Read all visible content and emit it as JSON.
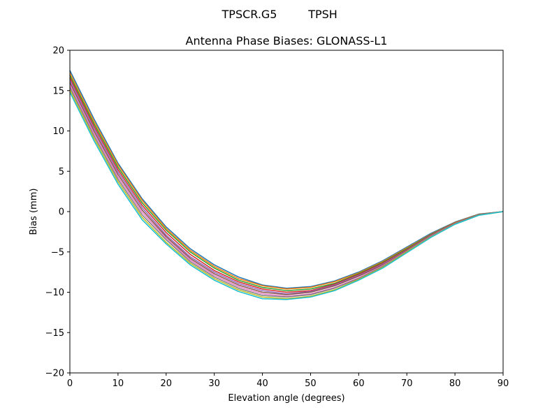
{
  "suptitle": {
    "left": "TPSCR.G5",
    "right": "TPSH"
  },
  "chart_data": {
    "type": "line",
    "title": "Antenna Phase Biases: GLONASS-L1",
    "xlabel": "Elevation angle (degrees)",
    "ylabel": "Bias (mm)",
    "xlim": [
      0,
      90
    ],
    "ylim": [
      -20,
      20
    ],
    "xticks": [
      "0",
      "10",
      "20",
      "30",
      "40",
      "50",
      "60",
      "70",
      "80",
      "90"
    ],
    "yticks": [
      "20",
      "15",
      "10",
      "5",
      "0",
      "−5",
      "−10",
      "−15",
      "−20"
    ],
    "grid": false,
    "legend": "none",
    "x": [
      0,
      5,
      10,
      15,
      20,
      25,
      30,
      35,
      40,
      45,
      50,
      55,
      60,
      65,
      70,
      75,
      80,
      85,
      90
    ],
    "series_colors": [
      "#1f77b4",
      "#ff7f0e",
      "#2ca02c",
      "#d62728",
      "#9467bd",
      "#8c564b",
      "#e377c2",
      "#7f7f7f",
      "#bcbd22",
      "#17becf"
    ],
    "series": [
      {
        "values": [
          17.5,
          11.5,
          6.0,
          1.6,
          -1.9,
          -4.6,
          -6.6,
          -8.1,
          -9.1,
          -9.5,
          -9.3,
          -8.6,
          -7.5,
          -6.1,
          -4.4,
          -2.7,
          -1.3,
          -0.3,
          0.0
        ]
      },
      {
        "values": [
          17.2,
          11.2,
          5.8,
          1.4,
          -2.1,
          -4.8,
          -6.8,
          -8.3,
          -9.2,
          -9.6,
          -9.4,
          -8.7,
          -7.6,
          -6.2,
          -4.5,
          -2.8,
          -1.35,
          -0.32,
          0.0
        ]
      },
      {
        "values": [
          16.9,
          10.9,
          5.5,
          1.1,
          -2.3,
          -5.0,
          -7.0,
          -8.5,
          -9.4,
          -9.8,
          -9.6,
          -8.9,
          -7.7,
          -6.3,
          -4.6,
          -2.85,
          -1.4,
          -0.34,
          0.0
        ]
      },
      {
        "values": [
          16.6,
          10.6,
          5.2,
          0.8,
          -2.6,
          -5.3,
          -7.3,
          -8.7,
          -9.6,
          -10.0,
          -9.8,
          -9.0,
          -7.8,
          -6.4,
          -4.7,
          -2.9,
          -1.42,
          -0.36,
          0.0
        ]
      },
      {
        "values": [
          16.3,
          10.3,
          4.9,
          0.5,
          -2.9,
          -5.6,
          -7.5,
          -8.9,
          -9.8,
          -10.2,
          -9.9,
          -9.1,
          -7.9,
          -6.5,
          -4.75,
          -2.95,
          -1.45,
          -0.38,
          0.0
        ]
      },
      {
        "values": [
          16.0,
          10.0,
          4.6,
          0.2,
          -3.1,
          -5.8,
          -7.7,
          -9.1,
          -10.0,
          -10.3,
          -10.0,
          -9.2,
          -8.0,
          -6.6,
          -4.8,
          -3.0,
          -1.48,
          -0.4,
          0.0
        ]
      },
      {
        "values": [
          15.7,
          9.7,
          4.3,
          -0.1,
          -3.3,
          -6.0,
          -7.9,
          -9.3,
          -10.2,
          -10.5,
          -10.2,
          -9.4,
          -8.2,
          -6.7,
          -4.9,
          -3.05,
          -1.5,
          -0.42,
          0.0
        ]
      },
      {
        "values": [
          15.4,
          9.4,
          4.0,
          -0.4,
          -3.5,
          -6.2,
          -8.1,
          -9.5,
          -10.4,
          -10.6,
          -10.3,
          -9.5,
          -8.3,
          -6.8,
          -4.95,
          -3.1,
          -1.52,
          -0.43,
          0.0
        ]
      },
      {
        "values": [
          15.1,
          9.1,
          3.7,
          -0.7,
          -3.8,
          -6.4,
          -8.3,
          -9.7,
          -10.6,
          -10.8,
          -10.5,
          -9.7,
          -8.4,
          -6.9,
          -5.0,
          -3.15,
          -1.55,
          -0.44,
          0.0
        ]
      },
      {
        "values": [
          14.8,
          8.8,
          3.4,
          -1.0,
          -4.0,
          -6.6,
          -8.5,
          -9.9,
          -10.8,
          -10.9,
          -10.6,
          -9.8,
          -8.5,
          -7.0,
          -5.1,
          -3.2,
          -1.58,
          -0.45,
          0.0
        ]
      }
    ]
  }
}
